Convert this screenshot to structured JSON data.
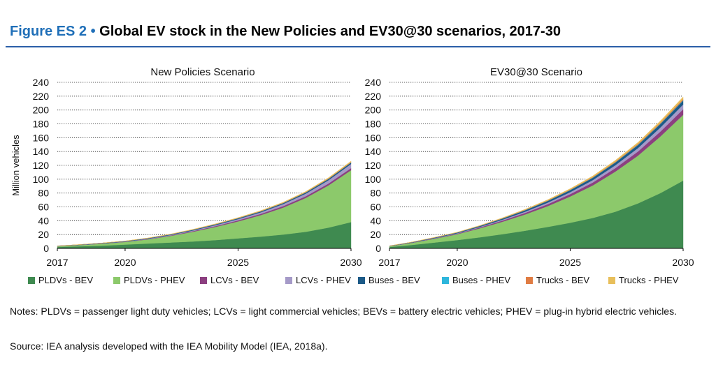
{
  "figure": {
    "label": "Figure ES 2",
    "bullet": "•",
    "title": "Global EV stock in the New Policies and EV30@30 scenarios, 2017-30"
  },
  "notes": "Notes: PLDVs = passenger light duty vehicles; LCVs = light commercial vehicles; BEVs = battery electric vehicles; PHEV = plug-in hybrid electric vehicles.",
  "source": "Source: IEA analysis developed with the IEA Mobility Model (IEA, 2018a).",
  "colors": {
    "PLDVs - BEV": "#3f8a50",
    "PLDVs - PHEV": "#8cc96b",
    "LCVs - BEV": "#8c3f80",
    "LCVs - PHEV": "#a59ac8",
    "Buses - BEV": "#1c5a87",
    "Buses - PHEV": "#2eb6dc",
    "Trucks - BEV": "#e07c43",
    "Trucks - PHEV": "#e8bf5b"
  },
  "chart_data": [
    {
      "type": "area",
      "stacked": true,
      "title": "New Policies Scenario",
      "ylabel": "Million vehicles",
      "xlabel": "",
      "x": [
        2017,
        2018,
        2019,
        2020,
        2021,
        2022,
        2023,
        2024,
        2025,
        2026,
        2027,
        2028,
        2029,
        2030
      ],
      "xticks": [
        "2017",
        "2020",
        "2025",
        "2030"
      ],
      "yticks": [
        "0",
        "20",
        "40",
        "60",
        "80",
        "100",
        "120",
        "140",
        "160",
        "180",
        "200",
        "220",
        "240"
      ],
      "ylim": [
        0,
        240
      ],
      "grid": "horizontal dotted",
      "series": [
        {
          "name": "PLDVs - BEV",
          "values": [
            2,
            3,
            4,
            5.5,
            7,
            8.5,
            10,
            12,
            14.5,
            17,
            20,
            24,
            30,
            38
          ]
        },
        {
          "name": "PLDVs - PHEV",
          "values": [
            1,
            1.8,
            2.8,
            3.8,
            6,
            9.5,
            14,
            19,
            24.5,
            31,
            39,
            49,
            61,
            75
          ]
        },
        {
          "name": "LCVs - BEV",
          "values": [
            0.1,
            0.1,
            0.2,
            0.3,
            0.4,
            0.6,
            0.9,
            1.2,
            1.5,
            1.8,
            2.1,
            2.4,
            2.7,
            3
          ]
        },
        {
          "name": "LCVs - PHEV",
          "values": [
            0.1,
            0.1,
            0.2,
            0.3,
            0.5,
            0.7,
            1,
            1.4,
            1.8,
            2.3,
            3,
            3.8,
            4.8,
            6
          ]
        },
        {
          "name": "Buses - BEV",
          "values": [
            0.4,
            0.5,
            0.6,
            0.7,
            0.8,
            0.9,
            1,
            1.1,
            1.2,
            1.3,
            1.4,
            1.6,
            1.8,
            2
          ]
        },
        {
          "name": "Buses - PHEV",
          "values": [
            0,
            0,
            0,
            0,
            0,
            0,
            0.1,
            0.1,
            0.1,
            0.1,
            0.1,
            0.1,
            0.1,
            0.1
          ]
        },
        {
          "name": "Trucks - BEV",
          "values": [
            0,
            0,
            0,
            0,
            0.1,
            0.1,
            0.1,
            0.2,
            0.2,
            0.3,
            0.3,
            0.4,
            0.5,
            0.6
          ]
        },
        {
          "name": "Trucks - PHEV",
          "values": [
            0.1,
            0.1,
            0.1,
            0.2,
            0.3,
            0.4,
            0.5,
            0.6,
            0.7,
            0.8,
            0.9,
            1,
            1.2,
            1.4
          ]
        }
      ]
    },
    {
      "type": "area",
      "stacked": true,
      "title": "EV30@30 Scenario",
      "ylabel": "",
      "xlabel": "",
      "x": [
        2017,
        2018,
        2019,
        2020,
        2021,
        2022,
        2023,
        2024,
        2025,
        2026,
        2027,
        2028,
        2029,
        2030
      ],
      "xticks": [
        "2017",
        "2020",
        "2025",
        "2030"
      ],
      "yticks": [
        "0",
        "20",
        "40",
        "60",
        "80",
        "100",
        "120",
        "140",
        "160",
        "180",
        "200",
        "220",
        "240"
      ],
      "ylim": [
        0,
        240
      ],
      "grid": "horizontal dotted",
      "series": [
        {
          "name": "PLDVs - BEV",
          "values": [
            2,
            5,
            8.5,
            12,
            16,
            20.5,
            25.5,
            31,
            37,
            44,
            53,
            65,
            80,
            98
          ]
        },
        {
          "name": "PLDVs - PHEV",
          "values": [
            1,
            3,
            5.5,
            8.5,
            13,
            18,
            23.5,
            30,
            38,
            47,
            58,
            69,
            82,
            95
          ]
        },
        {
          "name": "LCVs - BEV",
          "values": [
            0.1,
            0.3,
            0.5,
            0.8,
            1.2,
            1.7,
            2.2,
            2.8,
            3.4,
            4.2,
            5,
            6,
            7,
            8
          ]
        },
        {
          "name": "LCVs - PHEV",
          "values": [
            0.1,
            0.2,
            0.4,
            0.6,
            0.9,
            1.3,
            1.8,
            2.3,
            2.9,
            3.5,
            4.2,
            5,
            6,
            7
          ]
        },
        {
          "name": "Buses - BEV",
          "values": [
            0.4,
            0.6,
            0.8,
            1,
            1.3,
            1.6,
            2,
            2.4,
            2.8,
            3.3,
            3.8,
            4.3,
            4.9,
            5.5
          ]
        },
        {
          "name": "Buses - PHEV",
          "values": [
            0,
            0,
            0,
            0.1,
            0.1,
            0.1,
            0.2,
            0.2,
            0.3,
            0.3,
            0.4,
            0.5,
            0.6,
            0.7
          ]
        },
        {
          "name": "Trucks - BEV",
          "values": [
            0,
            0,
            0.1,
            0.1,
            0.2,
            0.3,
            0.4,
            0.5,
            0.6,
            0.8,
            1,
            1.2,
            1.4,
            1.7
          ]
        },
        {
          "name": "Trucks - PHEV",
          "values": [
            0.1,
            0.2,
            0.3,
            0.4,
            0.5,
            0.7,
            0.9,
            1.1,
            1.3,
            1.6,
            1.9,
            2.2,
            2.6,
            3
          ]
        }
      ]
    }
  ]
}
